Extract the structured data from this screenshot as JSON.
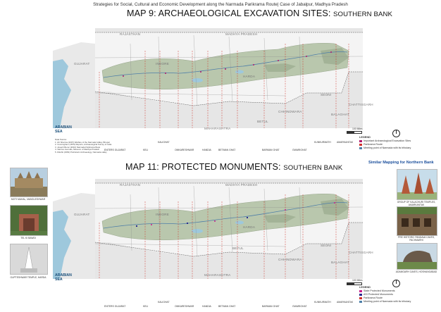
{
  "header": "Strategies for Social, Cultural and Economic Development along the Narmada Parikrama Route| Case of Jabalpur, Madhya Pradesh",
  "maps": [
    {
      "title": "MAP 9: ARCHAEOLOGICAL EXCAVATION SITES:",
      "subtitle": "SOUTHERN BANK",
      "regions": {
        "rajasthan": "RAJASTHAN",
        "madhya_pradesh": "MADHYA PRADESH",
        "gujarat": "GUJARAT",
        "maharashtra": "MAHARASHTRA",
        "chhattisgarh": "CHATTISGARH",
        "sea": "ARABIAN\nSEA"
      },
      "districts": {
        "indore": "INDORE",
        "harda": "HARDA",
        "chhindwara": "CHHINDWARA",
        "betul": "BETUL",
        "seoni": "SEONI",
        "balaghat": "BALAGHAT"
      },
      "locations": [
        "ENTERS GUJARAT",
        "KELI",
        "KALIGHAT",
        "OMKARESHWAR",
        "MANDLESHWAR",
        "HANDIA",
        "HARDA",
        "BETMAN GHAT",
        "BETMAN GHAT",
        "BARMAN GHAT",
        "BARMAN GHAT",
        "GWARIGHAT",
        "KUNKURMATH",
        "AMARKANTAK"
      ],
      "legend": {
        "title": "LEGEND",
        "items": [
          "Important Archaeological Excavation Sites",
          "Parikrama Route",
          "Meeting point of Narmada with its tributary"
        ]
      },
      "scale": "100 Miles",
      "sources": [
        "Data Source:",
        "1. AK Sharma (2007) Warfare of the Narmada Valley, Bhopal",
        "2. Cunningham (1879) Reports, Archaeological Survey of India",
        "3. Joseph Beruc (2010) Narmada Parikrama Book",
        "4. Various Journals, Museum of Madhya Pradesh",
        "5. Dikshit (1963) Prehistoric Archaeology, Narmada valley"
      ]
    },
    {
      "title": "MAP 11: PROTECTED MONUMENTS:",
      "subtitle": "SOUTHERN BANK",
      "regions": {
        "rajasthan": "RAJASTHAN",
        "madhya_pradesh": "MADHYA PRADESH",
        "gujarat": "GUJARAT",
        "maharashtra": "MAHARASHTRA",
        "chhattisgarh": "CHATTISGARH",
        "sea": "ARABIAN\nSEA"
      },
      "districts": {
        "indore": "INDORE",
        "harda": "HARDA",
        "chhindwara": "CHHINDWARA",
        "betul": "BETUL",
        "seoni": "SEONI",
        "balaghat": "BALAGHAT"
      },
      "locations": [
        "ENTERS GUJARAT",
        "KELI",
        "KALIGHAT",
        "OMKARESHWAR",
        "MANDLESHWAR",
        "HANDIA",
        "HARDA",
        "BETMAN GHAT",
        "BETMAN GHAT",
        "BARMAN GHAT",
        "BARMAN GHAT",
        "GWARIGHAT",
        "KUNKURMATH",
        "AMARKANTAK"
      ],
      "legend": {
        "title": "LEGEND",
        "items": [
          "State Protected Monuments",
          "ASI Protected Monuments",
          "Parikrama Route",
          "Meeting point of Narmada with its tributary"
        ]
      },
      "scale": "100 Miles"
    }
  ],
  "similar_note": "Similar Mapping for Northern Bank",
  "left_photos": [
    {
      "caption": "MOTI MAHAL, MANDLESHWAR"
    },
    {
      "caption": "TEL KI BAWDI"
    },
    {
      "caption": "GUPTESHWAR TEMPLE, HARDA"
    }
  ],
  "right_photos": [
    {
      "caption": "GROUP OF KALACHURI TEMPLES, AMARKANTAK"
    },
    {
      "caption": "PRE HISTORIC PANDAVA CAVES, PACHMARHI"
    },
    {
      "caption": "ADAMGARH CAVES, HOSHANGABAD"
    }
  ],
  "colors": {
    "land": "#e6e6e6",
    "river_belt": "#b9c7ad",
    "water": "#9ec8dc",
    "route": "#d0322b",
    "site": "#b0186d",
    "asi": "#2b2b8e"
  }
}
